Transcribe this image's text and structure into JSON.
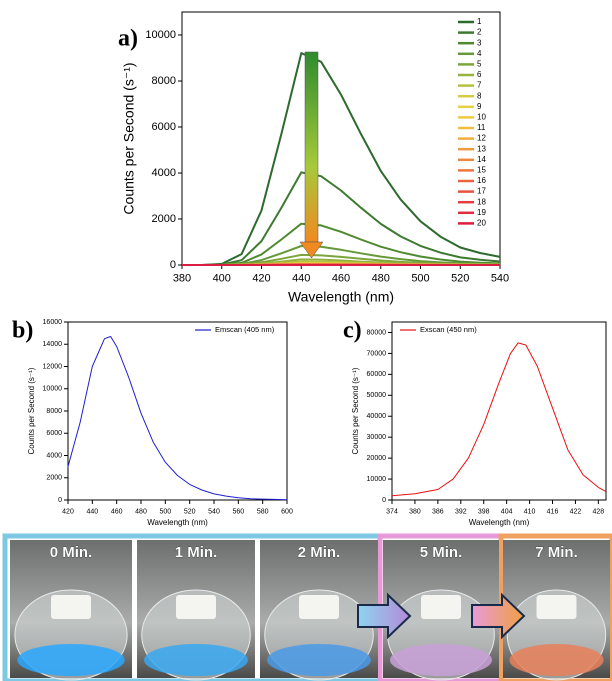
{
  "chart_data": [
    {
      "type": "line",
      "panel_label": "a)",
      "xlabel": "Wavelength (nm)",
      "ylabel": "Counts per Second (s⁻¹)",
      "xlim": [
        380,
        540
      ],
      "xticks": [
        380,
        400,
        420,
        440,
        460,
        480,
        500,
        520,
        540
      ],
      "ylim": [
        0,
        11000
      ],
      "yticks": [
        0,
        2000,
        4000,
        6000,
        8000,
        10000
      ],
      "legend": "right",
      "x": [
        380,
        390,
        400,
        410,
        420,
        430,
        440,
        450,
        460,
        470,
        480,
        490,
        500,
        510,
        520,
        530,
        540
      ],
      "series": [
        {
          "name": "1",
          "color": "#2d6a2d",
          "values": [
            0,
            0,
            48,
            475,
            2375,
            5700,
            9215,
            8835,
            7410,
            5700,
            4085,
            2850,
            1900,
            1235,
            760,
            523,
            352
          ]
        },
        {
          "name": "2",
          "color": "#3d7a30",
          "values": [
            0,
            0,
            21,
            208,
            1038,
            2490,
            4026,
            3860,
            3237,
            2490,
            1785,
            1245,
            830,
            540,
            332,
            228,
            154
          ]
        },
        {
          "name": "3",
          "color": "#4f8a30",
          "values": [
            0,
            0,
            9,
            93,
            463,
            1110,
            1795,
            1721,
            1443,
            1110,
            796,
            555,
            370,
            241,
            148,
            102,
            68
          ]
        },
        {
          "name": "4",
          "color": "#66993a",
          "values": [
            0,
            0,
            4,
            43,
            213,
            510,
            825,
            791,
            663,
            510,
            366,
            255,
            170,
            111,
            68,
            47,
            31
          ]
        },
        {
          "name": "5",
          "color": "#7da63a",
          "values": [
            0,
            0,
            2,
            23,
            113,
            270,
            437,
            419,
            351,
            270,
            194,
            135,
            90,
            59,
            36,
            25,
            17
          ]
        },
        {
          "name": "6",
          "color": "#94b23c",
          "values": [
            0,
            0,
            1,
            13,
            63,
            150,
            243,
            233,
            195,
            150,
            108,
            75,
            50,
            33,
            20,
            14,
            9
          ]
        },
        {
          "name": "7",
          "color": "#b5c03e",
          "values": [
            0,
            0,
            1,
            8,
            38,
            90,
            146,
            140,
            117,
            90,
            65,
            45,
            30,
            20,
            12,
            8,
            6
          ]
        },
        {
          "name": "8",
          "color": "#d4cc40",
          "values": [
            0,
            0,
            1,
            5,
            25,
            60,
            97,
            93,
            78,
            60,
            43,
            30,
            20,
            13,
            8,
            6,
            4
          ]
        },
        {
          "name": "9",
          "color": "#e8d040",
          "values": [
            0,
            0,
            0,
            4,
            18,
            42,
            68,
            65,
            55,
            42,
            30,
            21,
            14,
            9,
            6,
            4,
            3
          ]
        },
        {
          "name": "10",
          "color": "#f0c840",
          "values": [
            0,
            0,
            0,
            3,
            13,
            30,
            49,
            47,
            39,
            30,
            22,
            15,
            10,
            7,
            4,
            3,
            2
          ]
        },
        {
          "name": "11",
          "color": "#f2bc40",
          "values": [
            0,
            0,
            0,
            2,
            10,
            24,
            39,
            37,
            31,
            24,
            17,
            12,
            8,
            5,
            3,
            2,
            1
          ]
        },
        {
          "name": "12",
          "color": "#f2ac40",
          "values": [
            0,
            0,
            0,
            2,
            8,
            18,
            29,
            28,
            23,
            18,
            13,
            9,
            6,
            4,
            2,
            2,
            1
          ]
        },
        {
          "name": "13",
          "color": "#f09a40",
          "values": [
            0,
            0,
            0,
            1,
            6,
            15,
            24,
            23,
            20,
            15,
            11,
            8,
            5,
            3,
            2,
            1,
            1
          ]
        },
        {
          "name": "14",
          "color": "#ee8840",
          "values": [
            0,
            0,
            0,
            1,
            5,
            12,
            19,
            19,
            16,
            12,
            9,
            6,
            4,
            3,
            2,
            1,
            1
          ]
        },
        {
          "name": "15",
          "color": "#ec7640",
          "values": [
            0,
            0,
            0,
            1,
            4,
            9,
            15,
            14,
            12,
            9,
            6,
            5,
            3,
            2,
            1,
            1,
            1
          ]
        },
        {
          "name": "16",
          "color": "#ea6440",
          "values": [
            0,
            0,
            0,
            1,
            3,
            7,
            12,
            11,
            9,
            7,
            5,
            4,
            2,
            2,
            1,
            1,
            0
          ]
        },
        {
          "name": "17",
          "color": "#e85040",
          "values": [
            0,
            0,
            0,
            1,
            3,
            6,
            10,
            9,
            8,
            6,
            4,
            3,
            2,
            1,
            1,
            1,
            0
          ]
        },
        {
          "name": "18",
          "color": "#e43e40",
          "values": [
            0,
            0,
            0,
            0,
            2,
            5,
            8,
            7,
            6,
            5,
            3,
            2,
            2,
            1,
            1,
            0,
            0
          ]
        },
        {
          "name": "19",
          "color": "#e02c40",
          "values": [
            0,
            0,
            0,
            0,
            2,
            4,
            6,
            6,
            5,
            4,
            3,
            2,
            1,
            1,
            0,
            0,
            0
          ]
        },
        {
          "name": "20",
          "color": "#dc1c40",
          "values": [
            0,
            0,
            0,
            0,
            1,
            3,
            5,
            5,
            4,
            3,
            2,
            2,
            1,
            1,
            0,
            0,
            0
          ]
        }
      ]
    },
    {
      "type": "line",
      "panel_label": "b)",
      "xlabel": "Wavelength (nm)",
      "ylabel": "Counts per Second (s⁻¹)",
      "xlim": [
        420,
        600
      ],
      "xticks": [
        420,
        440,
        460,
        480,
        500,
        520,
        540,
        560,
        580,
        600
      ],
      "ylim": [
        0,
        16000
      ],
      "yticks": [
        0,
        2000,
        4000,
        6000,
        8000,
        10000,
        12000,
        14000,
        16000
      ],
      "legend": "upper right",
      "x": [
        420,
        430,
        440,
        450,
        455,
        460,
        470,
        480,
        490,
        500,
        510,
        520,
        530,
        540,
        550,
        560,
        570,
        580,
        590,
        600
      ],
      "series": [
        {
          "name": "Emscan (405 nm)",
          "color": "#1f1fd0",
          "values": [
            3000,
            7000,
            12000,
            14500,
            14700,
            13800,
            11000,
            7800,
            5200,
            3400,
            2200,
            1400,
            900,
            550,
            350,
            200,
            120,
            80,
            50,
            30
          ]
        }
      ]
    },
    {
      "type": "line",
      "panel_label": "c)",
      "xlabel": "Wavelength (nm)",
      "ylabel": "Counts per Second (s⁻¹)",
      "xlim": [
        374,
        430
      ],
      "xticks": [
        374,
        380,
        386,
        392,
        398,
        404,
        410,
        416,
        422,
        428
      ],
      "ylim": [
        0,
        85000
      ],
      "yticks": [
        0,
        10000,
        20000,
        30000,
        40000,
        50000,
        60000,
        70000,
        80000
      ],
      "legend": "upper left",
      "x": [
        374,
        380,
        386,
        390,
        394,
        398,
        402,
        405,
        407,
        409,
        412,
        416,
        420,
        424,
        428,
        430
      ],
      "series": [
        {
          "name": "Exscan (450 nm)",
          "color": "#e81010",
          "values": [
            2000,
            3000,
            5000,
            10000,
            20000,
            36000,
            56000,
            70000,
            75000,
            74000,
            64000,
            44000,
            24000,
            12000,
            6000,
            4000
          ]
        }
      ]
    }
  ],
  "photos": {
    "labels": [
      "0 Min.",
      "1 Min.",
      "2 Min.",
      "5 Min.",
      "7 Min."
    ]
  }
}
